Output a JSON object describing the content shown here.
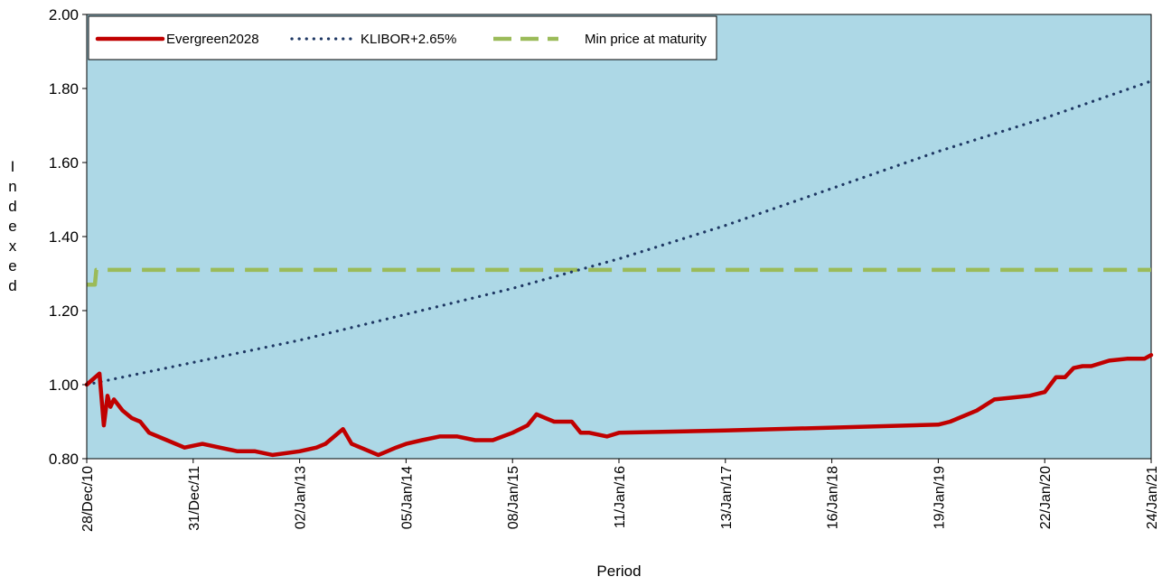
{
  "chart_data": {
    "type": "line",
    "title": "",
    "xlabel": "Period",
    "ylabel": "Indexed",
    "ylim": [
      0.8,
      2.0
    ],
    "y_ticks": [
      "0.80",
      "1.00",
      "1.20",
      "1.40",
      "1.60",
      "1.80",
      "2.00"
    ],
    "x_ticks": [
      "28/Dec/10",
      "31/Dec/11",
      "02/Jan/13",
      "05/Jan/14",
      "08/Jan/15",
      "11/Jan/16",
      "13/Jan/17",
      "16/Jan/18",
      "19/Jan/19",
      "22/Jan/20",
      "24/Jan/21"
    ],
    "grid": false,
    "legend_position": "top-left",
    "plot_background": "#ADD8E6",
    "series": [
      {
        "name": "Evergreen2028",
        "color": "#C00000",
        "style": "solid",
        "x": [
          "28/Dec/10",
          "10/Feb/11",
          "25/Feb/11",
          "10/Mar/11",
          "20/Mar/11",
          "01/Apr/11",
          "01/May/11",
          "01/Jun/11",
          "01/Jul/11",
          "01/Aug/11",
          "01/Oct/11",
          "01/Dec/11",
          "01/Feb/12",
          "01/Apr/12",
          "01/Jun/12",
          "01/Aug/12",
          "01/Oct/12",
          "02/Jan/13",
          "01/Mar/13",
          "01/Apr/13",
          "01/Jun/13",
          "01/Jul/13",
          "01/Aug/13",
          "01/Oct/13",
          "01/Nov/13",
          "01/Dec/13",
          "05/Jan/14",
          "01/Mar/14",
          "01/May/14",
          "01/Jul/14",
          "01/Sep/14",
          "01/Nov/14",
          "08/Jan/15",
          "01/Mar/15",
          "01/Apr/15",
          "01/May/15",
          "01/Jun/15",
          "01/Aug/15",
          "01/Sep/15",
          "01/Oct/15",
          "01/Dec/15",
          "11/Jan/16",
          "13/Jan/17",
          "16/Jan/18",
          "19/Jan/19",
          "01/Mar/19",
          "01/Jun/19",
          "01/Aug/19",
          "01/Oct/19",
          "01/Dec/19",
          "22/Jan/20",
          "01/Mar/20",
          "01/Apr/20",
          "01/May/20",
          "01/Jun/20",
          "01/Jul/20",
          "01/Sep/20",
          "01/Nov/20",
          "01/Jan/21",
          "24/Jan/21"
        ],
        "values": [
          1.0,
          1.03,
          0.89,
          0.97,
          0.94,
          0.96,
          0.93,
          0.91,
          0.9,
          0.87,
          0.85,
          0.83,
          0.84,
          0.83,
          0.82,
          0.82,
          0.81,
          0.82,
          0.83,
          0.84,
          0.88,
          0.84,
          0.83,
          0.81,
          0.82,
          0.83,
          0.84,
          0.85,
          0.86,
          0.86,
          0.85,
          0.85,
          0.87,
          0.89,
          0.92,
          0.91,
          0.9,
          0.9,
          0.87,
          0.87,
          0.86,
          0.87,
          0.876,
          0.884,
          0.892,
          0.9,
          0.93,
          0.96,
          0.965,
          0.97,
          0.98,
          1.02,
          1.02,
          1.045,
          1.05,
          1.05,
          1.065,
          1.07,
          1.07,
          1.08
        ]
      },
      {
        "name": "KLIBOR+2.65%",
        "color": "#1F3864",
        "style": "dotted",
        "x": [
          "28/Dec/10",
          "31/Dec/11",
          "02/Jan/13",
          "05/Jan/14",
          "08/Jan/15",
          "11/Jan/16",
          "13/Jan/17",
          "16/Jan/18",
          "19/Jan/19",
          "22/Jan/20",
          "24/Jan/21"
        ],
        "values": [
          1.0,
          1.06,
          1.12,
          1.19,
          1.26,
          1.34,
          1.43,
          1.53,
          1.63,
          1.72,
          1.82
        ]
      },
      {
        "name": "Min price at maturity",
        "color": "#9BBB59",
        "style": "dashed",
        "x": [
          "28/Dec/10",
          "25/Jan/11",
          "30/Jan/11",
          "24/Jan/21"
        ],
        "values": [
          1.27,
          1.27,
          1.31,
          1.31
        ]
      }
    ]
  }
}
